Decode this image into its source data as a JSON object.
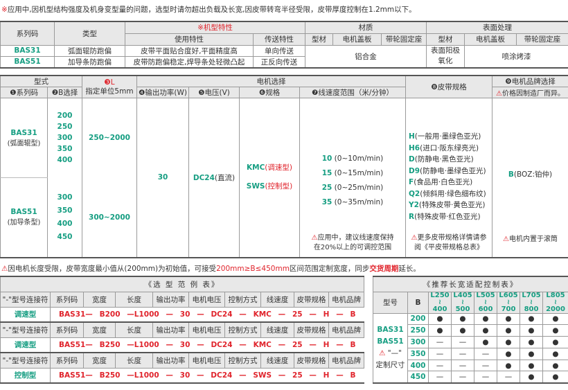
{
  "note_top": {
    "mark": "※",
    "text": "应用中,因机型结构强度及机身变型量的问题，选型时请勿超出负载及长宽,因皮带转弯半径受限，皮带厚度控制在1.2mm以下。"
  },
  "t1": {
    "h_series": "系列码",
    "h_type": "类型",
    "h_features": "※机型特性",
    "h_use": "使用特性",
    "h_trans": "传送特性",
    "h_material": "材质",
    "h_surface": "表面处理",
    "h_sub": [
      "型材",
      "电机盖板",
      "带轮固定座",
      "型材",
      "电机盖板",
      "带轮固定座"
    ],
    "rows": [
      {
        "code": "BAS31",
        "type": "弧面辊防跑偏",
        "use": "皮带平面贴合度好,平面精度高",
        "trans": "单向传送"
      },
      {
        "code": "BAS51",
        "type": "加导条防跑偏",
        "use": "皮带防跑偏稳定,焊导条处轻微凸起",
        "trans": "正反向传送"
      }
    ],
    "material": "铝合金",
    "surface_profile": "表面阳极氧化",
    "surface_other": "喷涂烤漆"
  },
  "t2": {
    "h_model": "型式",
    "h_series": "❶系列码",
    "h_b": "❷B选择",
    "h_l_num": "❸L",
    "h_l": "指定单位5mm",
    "h_motor": "电机选择",
    "h_power": "❹输出功率(W)",
    "h_volt": "❺电压(V)",
    "h_spec": "❻规格",
    "h_speed": "❼线速度范围（米/分钟）",
    "h_belt": "❽皮带规格",
    "h_brand": "❾电机品牌选择",
    "h_brand_note": "价格因制造厂而异。",
    "bas31": {
      "code": "BAS31",
      "sub": "(弧面辊型)",
      "b": [
        "200",
        "250",
        "300",
        "350",
        "400"
      ],
      "l": "250~2000"
    },
    "bas51": {
      "code": "BAS51",
      "sub": "(加导条型)",
      "b": [
        "300",
        "350",
        "400",
        "450"
      ],
      "l": "300~2000"
    },
    "power": "30",
    "volt_code": "DC24",
    "volt_sub": "(直流)",
    "specs": [
      {
        "code": "KMC",
        "sub": "(调速型)"
      },
      {
        "code": "SWS",
        "sub": "(控制型)"
      }
    ],
    "speeds": [
      {
        "v": "10",
        "r": "(0~10m/min)"
      },
      {
        "v": "15",
        "r": "(0~15m/min)"
      },
      {
        "v": "25",
        "r": "(0~25m/min)"
      },
      {
        "v": "35",
        "r": "(0~35m/min)"
      }
    ],
    "speed_note": [
      "应用中，建议线速度保持",
      "在20%以上的可调控范围"
    ],
    "belts": [
      {
        "c": "H",
        "d": "(一般用·墨绿色亚光)"
      },
      {
        "c": "H6",
        "d": "(进口·阪东绿亮光)"
      },
      {
        "c": "D",
        "d": "(防静电·黑色亚光)"
      },
      {
        "c": "D9",
        "d": "(防静电·墨绿色亚光)"
      },
      {
        "c": "F",
        "d": "(食品用·白色亚光)"
      },
      {
        "c": "Q2",
        "d": "(倾斜用·绿色细布纹)"
      },
      {
        "c": "Y2",
        "d": "(特殊皮带·黄色亚光)"
      },
      {
        "c": "R",
        "d": "(特殊皮带·红色亚光)"
      }
    ],
    "belt_note": [
      "更多皮带规格详情请参",
      "阅《平皮带规格总表》"
    ],
    "brand": {
      "c": "B",
      "d": "(BOZ:铂仲)"
    },
    "brand_note": "电机内置于滚筒"
  },
  "note_mid": {
    "a": "因电机长度受限，皮带宽度最小值从(200mm)为初始值，可接受",
    "b": "200mm≥B≤450mm",
    "c": "区间范围定制宽度，同步",
    "d": "交货周期",
    "e": "延长。"
  },
  "t3": {
    "title": "《选 型 范 例 表》",
    "headers": [
      "\"-\"型号连接符",
      "系列码",
      "宽度",
      "长度",
      "输出功率",
      "电机电压",
      "控制方式",
      "线速度",
      "皮带规格",
      "电机品牌"
    ],
    "rows": [
      {
        "label": "调速型",
        "vals": [
          "BAS31—",
          "B200",
          "—L1000",
          "—",
          "30",
          "—",
          "DC24",
          "—",
          "KMC",
          "—",
          "25",
          "—",
          "H",
          "—",
          "B"
        ]
      },
      {
        "label": "调速型",
        "vals": [
          "BAS51—",
          "B250",
          "—L1000",
          "—",
          "30",
          "—",
          "DC24",
          "—",
          "KMC",
          "—",
          "25",
          "—",
          "H",
          "—",
          "B"
        ]
      },
      {
        "label": "控制型",
        "vals": [
          "BAS51—",
          "B250",
          "—L1000",
          "—",
          "30",
          "—",
          "DC24",
          "—",
          "SWS",
          "—",
          "25",
          "—",
          "H",
          "—",
          "B"
        ]
      }
    ]
  },
  "t4": {
    "title": "《推荐长宽适配控制表》",
    "h_model": "型号",
    "h_b": "B",
    "lengths": [
      [
        "L250",
        "400"
      ],
      [
        "L405",
        "500"
      ],
      [
        "L505",
        "600"
      ],
      [
        "L605",
        "700"
      ],
      [
        "L705",
        "800"
      ],
      [
        "L805",
        "2000"
      ]
    ],
    "models": [
      "BAS31",
      "BAS51"
    ],
    "custom_mark": "\"—\"",
    "custom_text": "定制尺寸",
    "widths": [
      "200",
      "250",
      "300",
      "350",
      "400",
      "450"
    ],
    "matrix": [
      [
        1,
        1,
        1,
        1,
        1,
        1
      ],
      [
        1,
        1,
        1,
        1,
        1,
        1
      ],
      [
        0,
        0,
        1,
        1,
        1,
        1
      ],
      [
        0,
        0,
        0,
        1,
        1,
        1
      ],
      [
        0,
        0,
        0,
        1,
        1,
        1
      ],
      [
        0,
        0,
        0,
        0,
        1,
        1
      ]
    ],
    "dot": "●",
    "dash": "—"
  },
  "colors": {
    "green": "#169e82",
    "red": "#e0242c",
    "header": "#e8e8e8"
  }
}
